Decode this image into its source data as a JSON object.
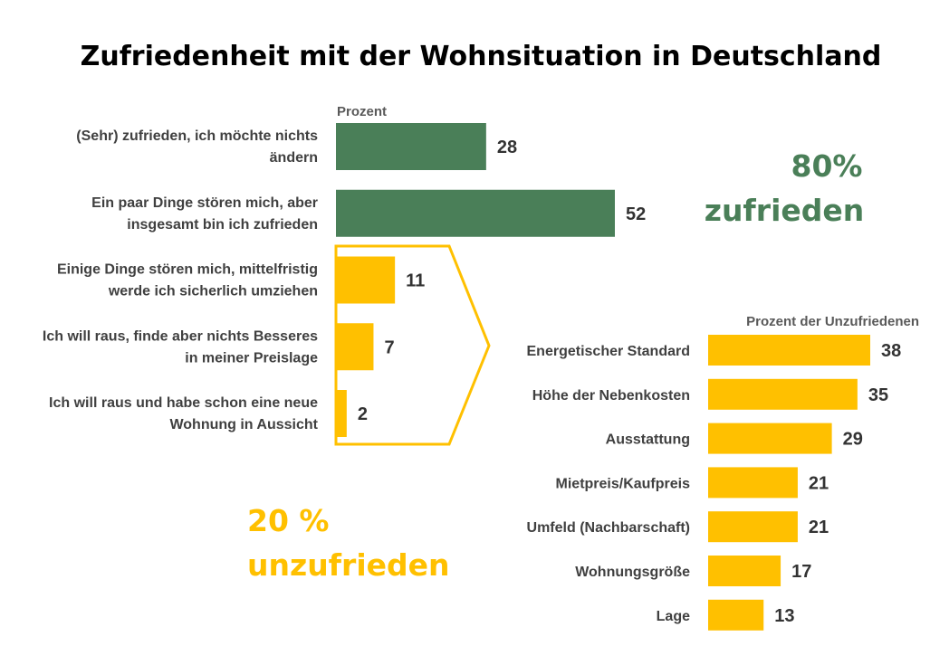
{
  "colors": {
    "satisfied": "#4a7f58",
    "dissatisfied": "#ffc000",
    "text": "#404040"
  },
  "chart_data": [
    {
      "type": "bar",
      "orientation": "horizontal",
      "title": "Zufriedenheit mit der Wohnsituation in Deutschland",
      "unit_label": "Prozent",
      "categories": [
        [
          "(Sehr) zufrieden, ich möchte nichts",
          "ändern"
        ],
        [
          "Ein paar Dinge stören mich, aber",
          "insgesamt bin ich zufrieden"
        ],
        [
          "Einige Dinge stören mich, mittelfristig",
          "werde ich sicherlich umziehen"
        ],
        [
          "Ich will raus, finde aber nichts Besseres",
          "in meiner Preislage"
        ],
        [
          "Ich will raus und habe schon eine neue",
          "Wohnung in Aussicht"
        ]
      ],
      "values": [
        28,
        52,
        11,
        7,
        2
      ],
      "bar_colors": [
        "#4a7f58",
        "#4a7f58",
        "#ffc000",
        "#ffc000",
        "#ffc000"
      ],
      "annotations": {
        "satisfied": {
          "value": "80%",
          "label": "zufrieden"
        },
        "dissatisfied": {
          "value": "20 %",
          "label": "unzufrieden"
        }
      }
    },
    {
      "type": "bar",
      "orientation": "horizontal",
      "unit_label": "Prozent der Unzufriedenen",
      "categories": [
        "Energetischer Standard",
        "Höhe der Nebenkosten",
        "Ausstattung",
        "Mietpreis/Kaufpreis",
        "Umfeld (Nachbarschaft)",
        "Wohnungsgröße",
        "Lage"
      ],
      "values": [
        38,
        35,
        29,
        21,
        21,
        17,
        13
      ],
      "bar_color": "#ffc000"
    }
  ]
}
